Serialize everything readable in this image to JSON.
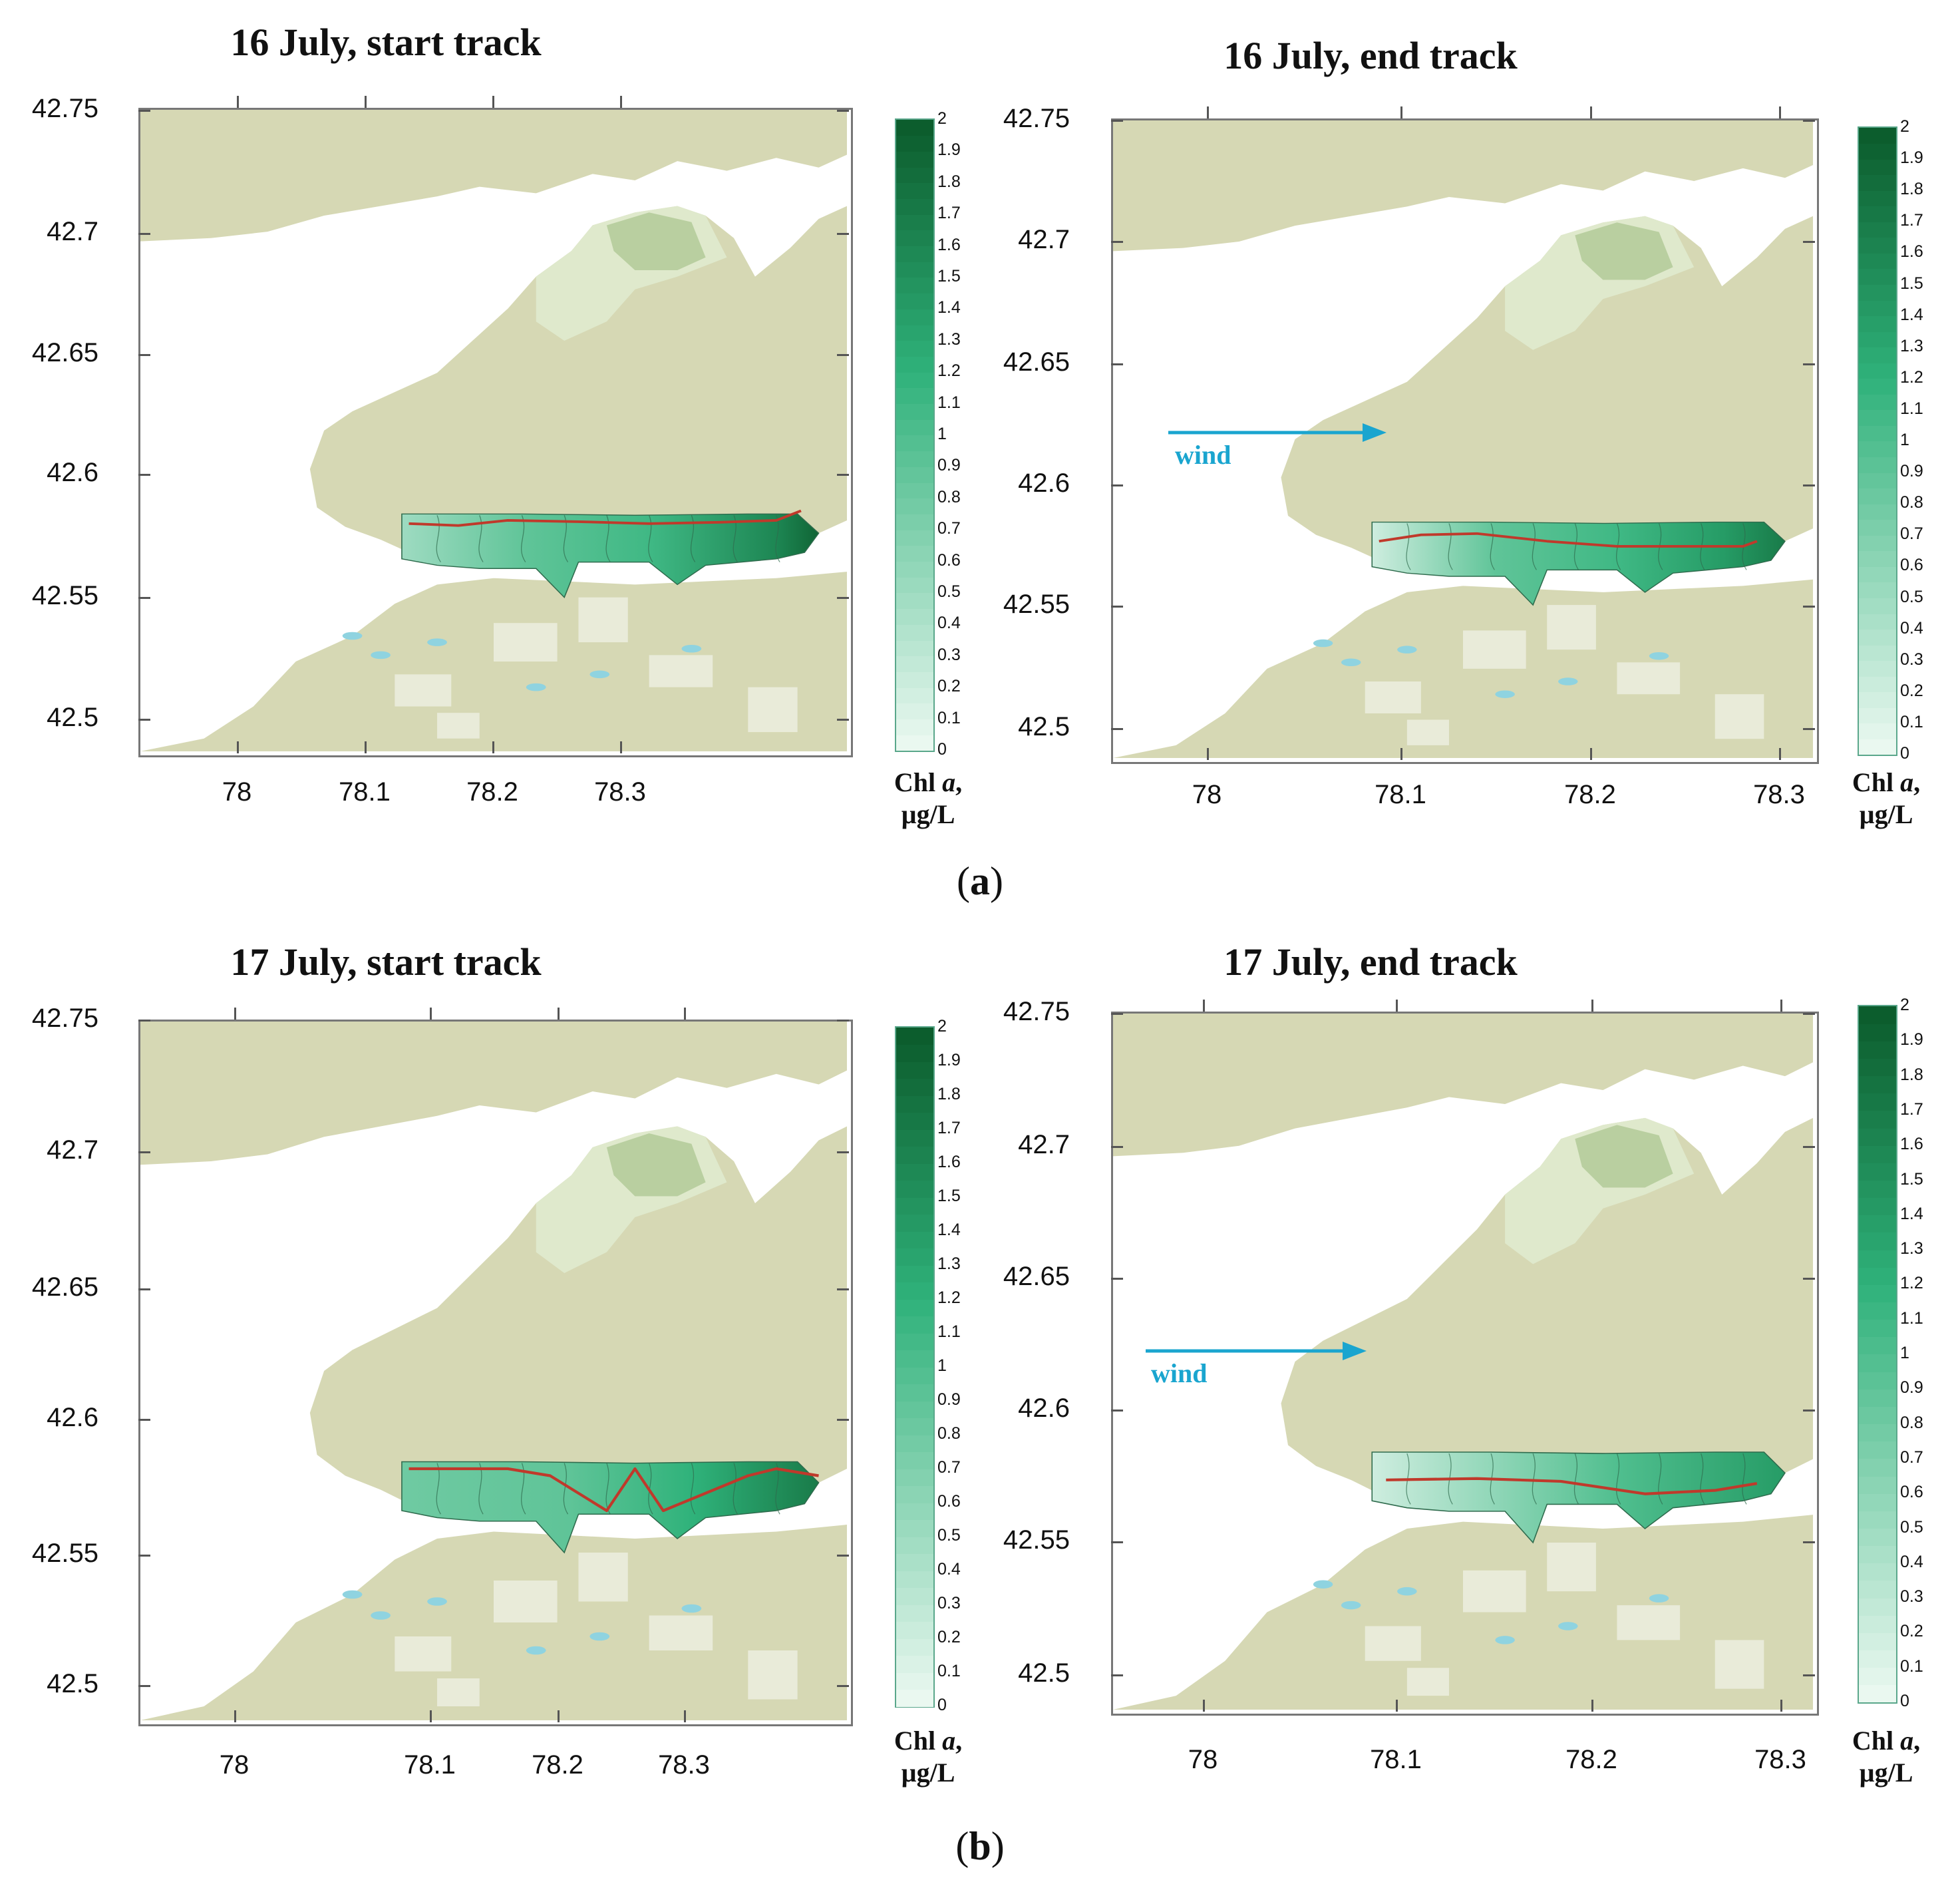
{
  "figure": {
    "caption_a": "a",
    "caption_b": "b",
    "colorbar": {
      "label_main": "Chl ",
      "label_italic": "a",
      "label_comma": ",",
      "label_unit": "µg/L",
      "ticks": [
        "0",
        "0.1",
        "0.2",
        "0.3",
        "0.4",
        "0.5",
        "0.6",
        "0.7",
        "0.8",
        "0.9",
        "1",
        "1.1",
        "1.2",
        "1.3",
        "1.4",
        "1.5",
        "1.6",
        "1.7",
        "1.8",
        "1.9",
        "2"
      ],
      "min": 0,
      "max": 2,
      "color_low": "#eef9f3",
      "color_mid": "#2fb27a",
      "color_high": "#0b5a2b"
    },
    "y_ticks": [
      "42.75",
      "42.7",
      "42.65",
      "42.6",
      "42.55",
      "42.5"
    ],
    "x_ticks": [
      "78",
      "78.1",
      "78.2",
      "78.3"
    ],
    "wind_label": "wind",
    "colors": {
      "land": "#d6d8b4",
      "water": "#ffffff",
      "track": "#c0392b",
      "wind": "#1aa5cf",
      "bay_fill": "#dfe9cc"
    }
  },
  "panels": [
    {
      "id": "p1",
      "title": "16 July, start track",
      "show_wind": false
    },
    {
      "id": "p2",
      "title": "16 July, end track",
      "show_wind": true
    },
    {
      "id": "p3",
      "title": "17 July, start track",
      "show_wind": false
    },
    {
      "id": "p4",
      "title": "17 July, end track",
      "show_wind": true
    }
  ]
}
